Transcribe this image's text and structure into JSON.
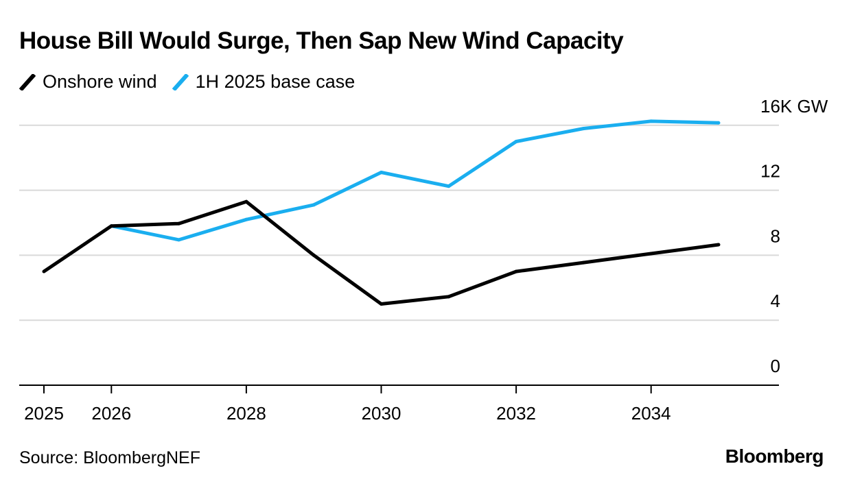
{
  "title": "House Bill Would Surge, Then Sap New Wind Capacity",
  "source": "Source: BloombergNEF",
  "brand": "Bloomberg",
  "colors": {
    "onshore": "#000000",
    "base": "#1aaeef",
    "grid": "#d9d9d9",
    "axis": "#000000"
  },
  "chart_data": {
    "type": "line",
    "title": "House Bill Would Surge, Then Sap New Wind Capacity",
    "x": [
      2025,
      2026,
      2027,
      2028,
      2029,
      2030,
      2031,
      2032,
      2033,
      2034,
      2035
    ],
    "series": [
      {
        "name": "Onshore wind",
        "color": "#000000",
        "values": [
          7.0,
          9.8,
          9.95,
          11.3,
          8.0,
          5.0,
          5.45,
          7.0,
          7.55,
          8.1,
          8.65
        ]
      },
      {
        "name": "1H 2025 base case",
        "color": "#1aaeef",
        "values": [
          null,
          9.8,
          8.95,
          10.2,
          11.1,
          13.1,
          12.25,
          15.0,
          15.8,
          16.25,
          16.15
        ]
      }
    ],
    "yticks": [
      0,
      4,
      8,
      12,
      16
    ],
    "ytick_labels": [
      "0",
      "4",
      "8",
      "12",
      "16K GW"
    ],
    "xticks": [
      2025,
      2026,
      2028,
      2030,
      2032,
      2034
    ],
    "xtick_labels": [
      "2025",
      "2026",
      "2028",
      "2030",
      "2032",
      "2034"
    ],
    "ylim": [
      0,
      16
    ],
    "y_axis_position": "right",
    "grid": true,
    "legend": "top-left"
  }
}
